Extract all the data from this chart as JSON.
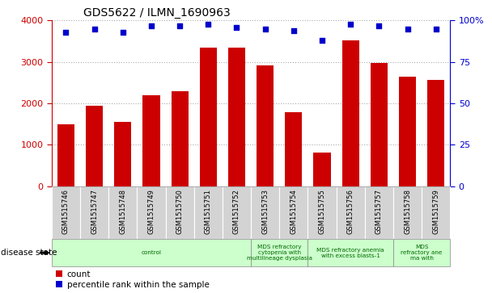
{
  "title": "GDS5622 / ILMN_1690963",
  "samples": [
    "GSM1515746",
    "GSM1515747",
    "GSM1515748",
    "GSM1515749",
    "GSM1515750",
    "GSM1515751",
    "GSM1515752",
    "GSM1515753",
    "GSM1515754",
    "GSM1515755",
    "GSM1515756",
    "GSM1515757",
    "GSM1515758",
    "GSM1515759"
  ],
  "counts": [
    1500,
    1950,
    1560,
    2200,
    2300,
    3350,
    3350,
    2920,
    1780,
    800,
    3520,
    2980,
    2640,
    2560
  ],
  "percentile_ranks": [
    93,
    95,
    93,
    97,
    97,
    98,
    96,
    95,
    94,
    88,
    98,
    97,
    95,
    95
  ],
  "bar_color": "#cc0000",
  "dot_color": "#0000cc",
  "ylim_left": [
    0,
    4000
  ],
  "ylim_right": [
    0,
    100
  ],
  "yticks_left": [
    0,
    1000,
    2000,
    3000,
    4000
  ],
  "yticks_right": [
    0,
    25,
    50,
    75,
    100
  ],
  "ylabel_left_color": "#cc0000",
  "ylabel_right_color": "#0000cc",
  "grid_color": "#aaaaaa",
  "tick_area_color": "#d3d3d3",
  "disease_groups": [
    {
      "label": "control",
      "start": 0,
      "end": 7
    },
    {
      "label": "MDS refractory\ncytopenia with\nmultilineage dysplasia",
      "start": 7,
      "end": 9
    },
    {
      "label": "MDS refractory anemia\nwith excess blasts-1",
      "start": 9,
      "end": 12
    },
    {
      "label": "MDS\nrefractory ane\nma with",
      "start": 12,
      "end": 14
    }
  ],
  "disease_group_color": "#ccffcc",
  "disease_group_text_color": "#006600",
  "disease_state_label": "disease state",
  "legend_count_label": "count",
  "legend_percentile_label": "percentile rank within the sample"
}
